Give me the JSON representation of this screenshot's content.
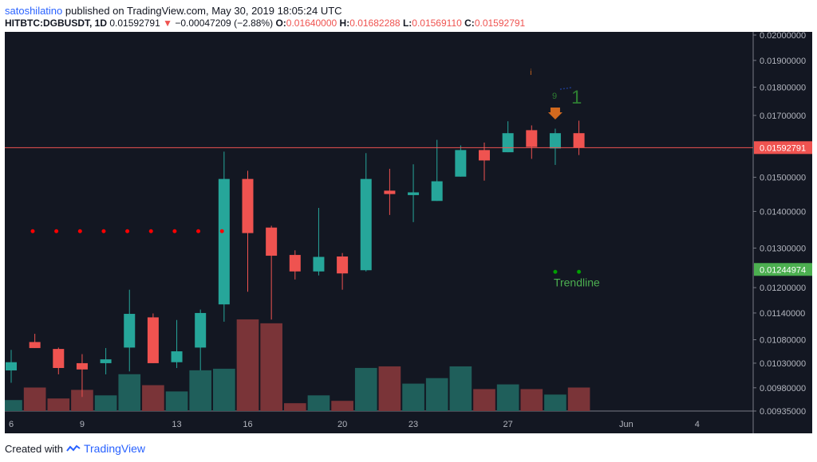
{
  "header": {
    "username": "satoshilatino",
    "published_text": "published on TradingView.com, May 30, 2019 18:05:24 UTC",
    "symbol": "HITBTC:DGBUSDT, 1D",
    "last_price": "0.01592791",
    "change_arrow": "▼",
    "change": "−0.00047209 (−2.88%)",
    "o_label": "O:",
    "o_value": "0.01640000",
    "h_label": "H:",
    "h_value": "0.01682288",
    "l_label": "L:",
    "l_value": "0.01569110",
    "c_label": "C:",
    "c_value": "0.01592791"
  },
  "footer": {
    "created_with": "Created with",
    "brand": "TradingView"
  },
  "colors": {
    "background": "#131722",
    "up": "#26a69a",
    "down": "#ef5350",
    "vol_up": "#1f5f5b",
    "vol_down": "#7a3438",
    "price_line": "#ef5350",
    "trendline_label_bg": "#4caf50",
    "dots_red": "#ff0000",
    "dots_green": "#00a000",
    "signal_orange": "#d2691e",
    "signal_green": "#2e7d32",
    "signal_blue": "#1e3a8a",
    "axis_text": "#b2b5be"
  },
  "chart_data": {
    "type": "candlestick",
    "symbol": "HITBTC:DGBUSDT",
    "interval": "1D",
    "y_scale": "log",
    "y_ticks": [
      "0.02000000",
      "0.01900000",
      "0.01800000",
      "0.01700000",
      "0.01500000",
      "0.01400000",
      "0.01300000",
      "0.01200000",
      "0.01140000",
      "0.01080000",
      "0.01030000",
      "0.00980000",
      "0.00935000"
    ],
    "x_ticks": [
      "6",
      "9",
      "13",
      "16",
      "20",
      "23",
      "27",
      "Jun",
      "4"
    ],
    "current_price_label": "0.01592791",
    "trendline_price_label": "0.01244974",
    "trendline_text": "Trendline",
    "signal_text_small": "9",
    "signal_text_large": "1",
    "signal_text_top": "i",
    "candles": [
      {
        "o": 0.01015,
        "h": 0.01058,
        "l": 0.0099,
        "c": 0.01032,
        "v": 14
      },
      {
        "o": 0.01075,
        "h": 0.01093,
        "l": 0.01062,
        "c": 0.01062,
        "v": 30
      },
      {
        "o": 0.0106,
        "h": 0.01063,
        "l": 0.01007,
        "c": 0.0102,
        "v": 16
      },
      {
        "o": 0.0103,
        "h": 0.01049,
        "l": 0.00962,
        "c": 0.01017,
        "v": 27
      },
      {
        "o": 0.0103,
        "h": 0.01062,
        "l": 0.01007,
        "c": 0.01038,
        "v": 20
      },
      {
        "o": 0.01063,
        "h": 0.01195,
        "l": 0.01013,
        "c": 0.01138,
        "v": 47
      },
      {
        "o": 0.0113,
        "h": 0.01139,
        "l": 0.0103,
        "c": 0.0103,
        "v": 33
      },
      {
        "o": 0.01032,
        "h": 0.01124,
        "l": 0.0102,
        "c": 0.01055,
        "v": 25
      },
      {
        "o": 0.01063,
        "h": 0.01148,
        "l": 0.01015,
        "c": 0.0114,
        "v": 52
      },
      {
        "o": 0.0116,
        "h": 0.0158,
        "l": 0.0112,
        "c": 0.01495,
        "v": 54
      },
      {
        "o": 0.01495,
        "h": 0.0152,
        "l": 0.0119,
        "c": 0.0134,
        "v": 117
      },
      {
        "o": 0.01355,
        "h": 0.0136,
        "l": 0.01125,
        "c": 0.0128,
        "v": 112
      },
      {
        "o": 0.01282,
        "h": 0.01294,
        "l": 0.0122,
        "c": 0.0124,
        "v": 10
      },
      {
        "o": 0.0124,
        "h": 0.0141,
        "l": 0.0123,
        "c": 0.01277,
        "v": 20
      },
      {
        "o": 0.01278,
        "h": 0.01287,
        "l": 0.01195,
        "c": 0.01235,
        "v": 13
      },
      {
        "o": 0.01243,
        "h": 0.01575,
        "l": 0.0124,
        "c": 0.01495,
        "v": 55
      },
      {
        "o": 0.0146,
        "h": 0.01526,
        "l": 0.0139,
        "c": 0.0145,
        "v": 57
      },
      {
        "o": 0.01447,
        "h": 0.0154,
        "l": 0.0137,
        "c": 0.01455,
        "v": 35
      },
      {
        "o": 0.0143,
        "h": 0.01618,
        "l": 0.0143,
        "c": 0.01488,
        "v": 42
      },
      {
        "o": 0.01502,
        "h": 0.016,
        "l": 0.01502,
        "c": 0.01585,
        "v": 57
      },
      {
        "o": 0.01585,
        "h": 0.01609,
        "l": 0.0149,
        "c": 0.01552,
        "v": 28
      },
      {
        "o": 0.01578,
        "h": 0.0168,
        "l": 0.01578,
        "c": 0.0164,
        "v": 34
      },
      {
        "o": 0.0165,
        "h": 0.01666,
        "l": 0.01557,
        "c": 0.01595,
        "v": 28
      },
      {
        "o": 0.0159,
        "h": 0.01655,
        "l": 0.01538,
        "c": 0.0164,
        "v": 21
      },
      {
        "o": 0.0164,
        "h": 0.01682,
        "l": 0.01569,
        "c": 0.01593,
        "v": 30
      }
    ]
  }
}
